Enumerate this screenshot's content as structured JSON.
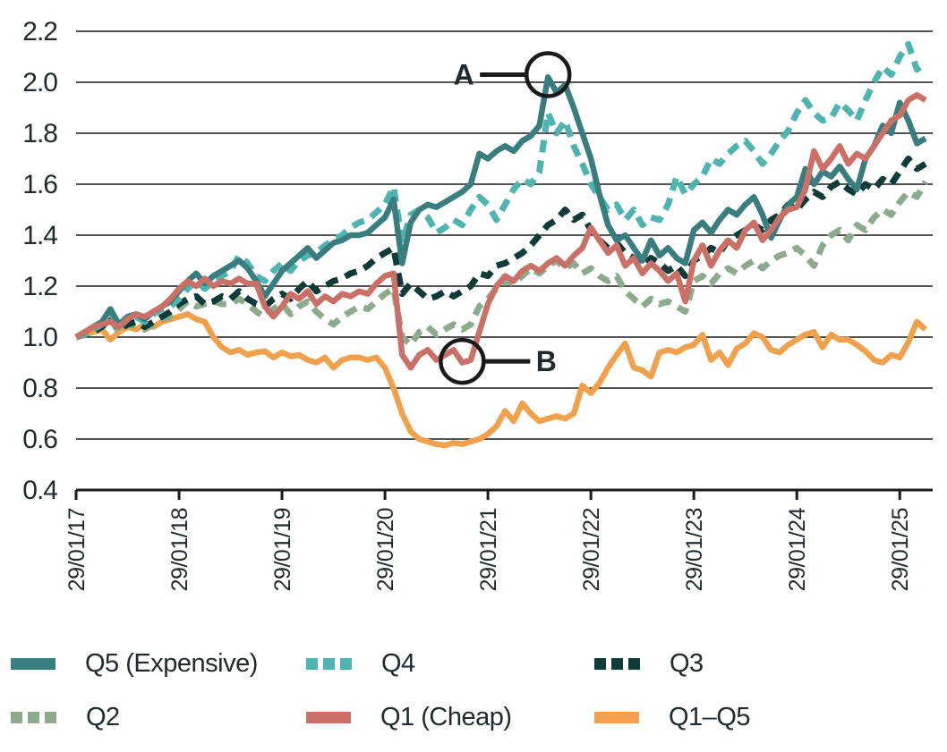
{
  "chart_data": {
    "type": "line",
    "title": "",
    "xlabel": "",
    "ylabel": "",
    "grid": "horizontal",
    "legend_position": "bottom",
    "x_domain": [
      0,
      99
    ],
    "ylim": [
      0.4,
      2.2
    ],
    "y_tick_labels": [
      "2.2",
      "2.0",
      "1.8",
      "1.6",
      "1.4",
      "1.2",
      "1.0",
      "0.8",
      "0.6",
      "0.4"
    ],
    "x_tick_labels": [
      "29/01/17",
      "29/01/18",
      "29/01/19",
      "29/01/20",
      "29/01/21",
      "29/01/22",
      "29/01/23",
      "29/01/24",
      "29/01/25"
    ],
    "x_tick_months": [
      0,
      12,
      24,
      36,
      48,
      60,
      72,
      84,
      96
    ],
    "axis_color": "#1a1a1a",
    "series": [
      {
        "name": "Q1–Q5",
        "color": "#f1a14c",
        "style": "solid",
        "values": [
          1.0,
          1.01,
          1.02,
          1.03,
          0.99,
          1.02,
          1.04,
          1.03,
          1.05,
          1.04,
          1.06,
          1.07,
          1.08,
          1.09,
          1.07,
          1.06,
          1.0,
          0.96,
          0.94,
          0.95,
          0.93,
          0.94,
          0.945,
          0.92,
          0.94,
          0.925,
          0.93,
          0.91,
          0.9,
          0.92,
          0.88,
          0.91,
          0.92,
          0.92,
          0.91,
          0.92,
          0.88,
          0.8,
          0.7,
          0.63,
          0.6,
          0.59,
          0.58,
          0.575,
          0.585,
          0.58,
          0.59,
          0.6,
          0.62,
          0.65,
          0.71,
          0.67,
          0.74,
          0.7,
          0.67,
          0.68,
          0.69,
          0.68,
          0.7,
          0.81,
          0.78,
          0.82,
          0.88,
          0.93,
          0.975,
          0.88,
          0.87,
          0.845,
          0.94,
          0.95,
          0.94,
          0.96,
          0.97,
          1.01,
          0.91,
          0.94,
          0.89,
          0.955,
          0.975,
          1.015,
          1.0,
          0.95,
          0.94,
          0.97,
          0.99,
          1.01,
          1.02,
          0.96,
          1.01,
          0.99,
          0.99,
          0.97,
          0.945,
          0.91,
          0.9,
          0.93,
          0.92,
          0.98,
          1.06,
          1.03
        ]
      },
      {
        "name": "Q2",
        "color": "#8cab8d",
        "style": "dashed",
        "values": [
          1.0,
          1.01,
          1.03,
          1.04,
          1.07,
          1.02,
          1.05,
          1.04,
          1.03,
          1.05,
          1.07,
          1.08,
          1.11,
          1.14,
          1.12,
          1.13,
          1.14,
          1.13,
          1.13,
          1.15,
          1.13,
          1.1,
          1.08,
          1.11,
          1.13,
          1.09,
          1.12,
          1.14,
          1.1,
          1.07,
          1.05,
          1.08,
          1.1,
          1.12,
          1.11,
          1.14,
          1.17,
          1.19,
          1.0,
          0.97,
          1.02,
          1.04,
          1.01,
          1.03,
          1.05,
          1.03,
          1.05,
          1.12,
          1.15,
          1.19,
          1.22,
          1.21,
          1.24,
          1.27,
          1.25,
          1.28,
          1.3,
          1.27,
          1.29,
          1.25,
          1.27,
          1.24,
          1.22,
          1.24,
          1.18,
          1.15,
          1.12,
          1.15,
          1.13,
          1.14,
          1.12,
          1.1,
          1.22,
          1.24,
          1.21,
          1.25,
          1.27,
          1.25,
          1.28,
          1.3,
          1.27,
          1.3,
          1.32,
          1.33,
          1.35,
          1.32,
          1.28,
          1.36,
          1.4,
          1.42,
          1.38,
          1.44,
          1.42,
          1.47,
          1.5,
          1.48,
          1.53,
          1.57,
          1.55,
          1.61
        ]
      },
      {
        "name": "Q3",
        "color": "#0e3a38",
        "style": "dashed",
        "values": [
          1.0,
          1.01,
          1.02,
          1.04,
          1.08,
          1.03,
          1.05,
          1.06,
          1.04,
          1.06,
          1.08,
          1.1,
          1.13,
          1.15,
          1.16,
          1.13,
          1.14,
          1.16,
          1.15,
          1.18,
          1.15,
          1.13,
          1.12,
          1.15,
          1.17,
          1.15,
          1.19,
          1.22,
          1.18,
          1.2,
          1.22,
          1.23,
          1.25,
          1.26,
          1.28,
          1.31,
          1.33,
          1.35,
          1.17,
          1.21,
          1.18,
          1.15,
          1.16,
          1.18,
          1.16,
          1.18,
          1.2,
          1.25,
          1.24,
          1.28,
          1.29,
          1.31,
          1.33,
          1.36,
          1.4,
          1.44,
          1.46,
          1.5,
          1.46,
          1.48,
          1.42,
          1.38,
          1.35,
          1.37,
          1.33,
          1.31,
          1.28,
          1.31,
          1.29,
          1.26,
          1.28,
          1.24,
          1.3,
          1.32,
          1.35,
          1.33,
          1.38,
          1.4,
          1.42,
          1.44,
          1.42,
          1.46,
          1.48,
          1.52,
          1.5,
          1.54,
          1.57,
          1.55,
          1.59,
          1.61,
          1.58,
          1.56,
          1.6,
          1.58,
          1.62,
          1.6,
          1.65,
          1.7,
          1.66,
          1.68
        ]
      },
      {
        "name": "Q4",
        "color": "#4fb4af",
        "style": "dashed",
        "values": [
          1.0,
          1.01,
          1.03,
          1.05,
          1.1,
          1.04,
          1.07,
          1.08,
          1.06,
          1.09,
          1.11,
          1.12,
          1.15,
          1.19,
          1.22,
          1.19,
          1.22,
          1.24,
          1.26,
          1.32,
          1.29,
          1.24,
          1.22,
          1.26,
          1.29,
          1.26,
          1.3,
          1.32,
          1.33,
          1.36,
          1.38,
          1.4,
          1.43,
          1.45,
          1.46,
          1.49,
          1.52,
          1.59,
          1.37,
          1.48,
          1.5,
          1.47,
          1.41,
          1.43,
          1.46,
          1.44,
          1.5,
          1.55,
          1.52,
          1.46,
          1.52,
          1.58,
          1.62,
          1.6,
          1.65,
          1.88,
          1.8,
          1.85,
          1.75,
          1.68,
          1.6,
          1.55,
          1.5,
          1.52,
          1.46,
          1.5,
          1.44,
          1.47,
          1.46,
          1.52,
          1.63,
          1.56,
          1.6,
          1.63,
          1.7,
          1.68,
          1.72,
          1.75,
          1.77,
          1.73,
          1.68,
          1.72,
          1.77,
          1.81,
          1.88,
          1.93,
          1.88,
          1.85,
          1.86,
          1.92,
          1.89,
          1.85,
          1.93,
          2.0,
          2.06,
          2.03,
          2.1,
          2.15,
          2.05,
          2.08
        ]
      },
      {
        "name": "Q5 (Expensive)",
        "color": "#3a7d7f",
        "style": "solid",
        "values": [
          1.0,
          1.02,
          1.04,
          1.06,
          1.11,
          1.05,
          1.08,
          1.09,
          1.07,
          1.1,
          1.12,
          1.14,
          1.18,
          1.22,
          1.25,
          1.21,
          1.24,
          1.26,
          1.28,
          1.3,
          1.27,
          1.22,
          1.16,
          1.21,
          1.26,
          1.29,
          1.32,
          1.35,
          1.31,
          1.34,
          1.37,
          1.38,
          1.4,
          1.4,
          1.41,
          1.44,
          1.47,
          1.54,
          1.29,
          1.45,
          1.5,
          1.52,
          1.51,
          1.53,
          1.55,
          1.57,
          1.6,
          1.72,
          1.7,
          1.73,
          1.75,
          1.73,
          1.77,
          1.79,
          1.83,
          2.02,
          1.96,
          1.99,
          1.9,
          1.8,
          1.7,
          1.56,
          1.44,
          1.38,
          1.4,
          1.35,
          1.3,
          1.38,
          1.32,
          1.35,
          1.31,
          1.29,
          1.42,
          1.45,
          1.41,
          1.46,
          1.5,
          1.48,
          1.52,
          1.55,
          1.48,
          1.39,
          1.46,
          1.52,
          1.55,
          1.66,
          1.6,
          1.65,
          1.63,
          1.67,
          1.62,
          1.58,
          1.7,
          1.75,
          1.83,
          1.8,
          1.92,
          1.85,
          1.76,
          1.78
        ]
      },
      {
        "name": "Q1 (Cheap)",
        "color": "#cb7067",
        "style": "solid",
        "values": [
          1.0,
          1.02,
          1.04,
          1.05,
          1.06,
          1.04,
          1.07,
          1.09,
          1.08,
          1.1,
          1.12,
          1.15,
          1.19,
          1.22,
          1.2,
          1.23,
          1.2,
          1.22,
          1.21,
          1.23,
          1.21,
          1.21,
          1.12,
          1.08,
          1.12,
          1.17,
          1.15,
          1.18,
          1.13,
          1.16,
          1.14,
          1.17,
          1.16,
          1.18,
          1.17,
          1.21,
          1.24,
          1.25,
          0.93,
          0.88,
          0.93,
          0.95,
          0.91,
          0.93,
          0.95,
          0.9,
          0.91,
          1.02,
          1.13,
          1.2,
          1.24,
          1.22,
          1.26,
          1.28,
          1.26,
          1.29,
          1.31,
          1.28,
          1.32,
          1.35,
          1.43,
          1.38,
          1.33,
          1.36,
          1.28,
          1.31,
          1.25,
          1.29,
          1.26,
          1.22,
          1.25,
          1.14,
          1.3,
          1.36,
          1.28,
          1.34,
          1.38,
          1.35,
          1.42,
          1.45,
          1.38,
          1.42,
          1.47,
          1.5,
          1.51,
          1.58,
          1.73,
          1.66,
          1.7,
          1.75,
          1.68,
          1.72,
          1.7,
          1.75,
          1.8,
          1.85,
          1.87,
          1.93,
          1.95,
          1.93
        ]
      }
    ],
    "legend_order": [
      "Q5 (Expensive)",
      "Q4",
      "Q3",
      "Q2",
      "Q1 (Cheap)",
      "Q1–Q5"
    ],
    "annotations": [
      {
        "label": "A",
        "month": 55,
        "value": 2.03,
        "radius": 24,
        "side": "left"
      },
      {
        "label": "B",
        "month": 45,
        "value": 0.905,
        "radius": 24,
        "side": "right"
      }
    ]
  }
}
